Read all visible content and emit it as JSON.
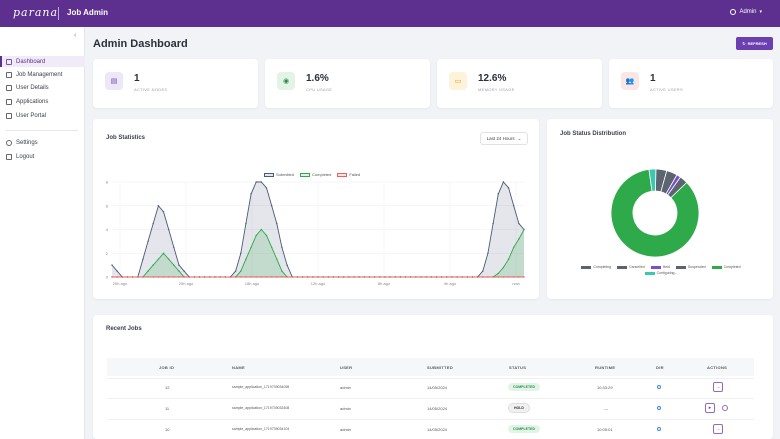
{
  "header": {
    "logo": "parana",
    "app_title": "Job Admin",
    "user_label": "Admin"
  },
  "sidebar": {
    "collapse_icon": "‹",
    "items": [
      {
        "label": "Dashboard",
        "icon": "dashboard-icon",
        "active": true
      },
      {
        "label": "Job Management",
        "icon": "jobs-icon"
      },
      {
        "label": "User Details",
        "icon": "user-details-icon"
      },
      {
        "label": "Applications",
        "icon": "applications-icon"
      },
      {
        "label": "User Portal",
        "icon": "portal-icon"
      }
    ],
    "bottom_items": [
      {
        "label": "Settings",
        "icon": "gear-icon"
      },
      {
        "label": "Logout",
        "icon": "logout-icon"
      }
    ]
  },
  "page": {
    "title": "Admin Dashboard",
    "refresh_label": "REFRESH"
  },
  "stats": [
    {
      "value": "1",
      "label": "ACTIVE NODES",
      "icon": "server-icon",
      "bg": "#ece8f7",
      "fg": "#6b3fb0"
    },
    {
      "value": "1.6%",
      "label": "CPU USAGE",
      "icon": "cpu-icon",
      "bg": "#e3f4e7",
      "fg": "#2d8a48"
    },
    {
      "value": "12.6%",
      "label": "MEMORY USAGE",
      "icon": "memory-icon",
      "bg": "#fdf3da",
      "fg": "#d89a1b"
    },
    {
      "value": "1",
      "label": "ACTIVE USERS",
      "icon": "users-icon",
      "bg": "#fbe6e6",
      "fg": "#d14040"
    }
  ],
  "job_stats": {
    "title": "Job Statistics",
    "range": "Last 24 Hours"
  },
  "chart_data": [
    {
      "type": "area",
      "title": "Job Statistics",
      "x": [
        "20h ago",
        "",
        "",
        "",
        "",
        "",
        "",
        "",
        "",
        "",
        "",
        "",
        "",
        "",
        "",
        "",
        "",
        "",
        "",
        "",
        "",
        "",
        "",
        "",
        "",
        "",
        "",
        "",
        "",
        "",
        "",
        "",
        "",
        "",
        "",
        "",
        "",
        "",
        "",
        "",
        "",
        "",
        "",
        "",
        "",
        "",
        "",
        "",
        "",
        "",
        "",
        "",
        "",
        "",
        "",
        "",
        "",
        "",
        "",
        "",
        "",
        "",
        "",
        "",
        "",
        "",
        "",
        "",
        "",
        "",
        "",
        "",
        "",
        "",
        "",
        "",
        "",
        "",
        "",
        "",
        "now"
      ],
      "xticks": [
        "20h ago",
        "20h ago",
        "18h ago",
        "12h ago",
        "8h ago",
        "4h ago",
        "now"
      ],
      "yticks": [
        "0",
        "2",
        "4",
        "6",
        "8"
      ],
      "ylim": [
        0,
        8
      ],
      "series": [
        {
          "name": "Submitted",
          "color": "#4a5a7a",
          "values": [
            1,
            0.5,
            0,
            0,
            0,
            0,
            1.5,
            3,
            4.5,
            6,
            5.5,
            4,
            2.5,
            1,
            0.5,
            0,
            0,
            0,
            0,
            0,
            0,
            0,
            0,
            0,
            0.5,
            2,
            4.5,
            7,
            8,
            8,
            7.5,
            6,
            4.5,
            2.5,
            1,
            0,
            0,
            0,
            0,
            0,
            0,
            0,
            0,
            0,
            0,
            0,
            0,
            0,
            0,
            0,
            0,
            0,
            0,
            0,
            0,
            0,
            0,
            0,
            0,
            0,
            0,
            0,
            0,
            0,
            0,
            0,
            0,
            0,
            0,
            0,
            0,
            0,
            0.5,
            2,
            4.5,
            7,
            8,
            7.5,
            6,
            4.5,
            4
          ]
        },
        {
          "name": "Completed",
          "color": "#2faa4a",
          "values": [
            0,
            0,
            0,
            0,
            0,
            0,
            0,
            0.5,
            1,
            1.5,
            2,
            1.5,
            1,
            0.5,
            0,
            0,
            0,
            0,
            0,
            0,
            0,
            0,
            0,
            0,
            0,
            0.5,
            1.5,
            2.5,
            3.5,
            4,
            3.5,
            2.5,
            1.5,
            0.5,
            0,
            0,
            0,
            0,
            0,
            0,
            0,
            0,
            0,
            0,
            0,
            0,
            0,
            0,
            0,
            0,
            0,
            0,
            0,
            0,
            0,
            0,
            0,
            0,
            0,
            0,
            0,
            0,
            0,
            0,
            0,
            0,
            0,
            0,
            0,
            0,
            0,
            0,
            0,
            0,
            0,
            0.3,
            0.8,
            1.5,
            2.5,
            3.2,
            4
          ]
        },
        {
          "name": "Failed",
          "color": "#e06262",
          "values": [
            0,
            0,
            0,
            0,
            0,
            0,
            0,
            0,
            0,
            0,
            0,
            0,
            0,
            0,
            0,
            0,
            0,
            0,
            0,
            0,
            0,
            0,
            0,
            0,
            0,
            0,
            0,
            0,
            0,
            0,
            0,
            0,
            0,
            0,
            0,
            0,
            0,
            0,
            0,
            0,
            0,
            0,
            0,
            0,
            0,
            0,
            0,
            0,
            0,
            0,
            0,
            0,
            0,
            0,
            0,
            0,
            0,
            0,
            0,
            0,
            0,
            0,
            0,
            0,
            0,
            0,
            0,
            0,
            0,
            0,
            0,
            0,
            0,
            0,
            0,
            0,
            0,
            0,
            0,
            0,
            0
          ]
        }
      ]
    },
    {
      "type": "pie",
      "title": "Job Status Distribution",
      "categories": [
        "Completing",
        "Cancelled",
        "Held",
        "Suspended",
        "Completed",
        "Configuring"
      ],
      "colors": [
        "#5c6470",
        "#5c6470",
        "#7a4fc7",
        "#5c6470",
        "#2faa4a",
        "#3cc8b0"
      ],
      "values": [
        4,
        4,
        1.5,
        3,
        85,
        2.5
      ]
    }
  ],
  "distribution": {
    "title": "Job Status Distribution",
    "legend": [
      {
        "label": "Completing",
        "color": "#5c6470"
      },
      {
        "label": "Cancelled",
        "color": "#5c6470"
      },
      {
        "label": "Held",
        "color": "#7a4fc7"
      },
      {
        "label": "Suspended",
        "color": "#5c6470"
      },
      {
        "label": "Completed",
        "color": "#2faa4a"
      },
      {
        "label": "Configuring...",
        "color": "#3cc8b0"
      }
    ]
  },
  "recent_jobs": {
    "title": "Recent Jobs",
    "columns": [
      "JOB ID",
      "NAME",
      "USER",
      "SUBMITTED",
      "STATUS",
      "RUNTIME",
      "DIR",
      "ACTIONS"
    ],
    "rows": [
      {
        "id": "12",
        "name": "sample_application_1719739034098",
        "user": "admin",
        "submitted": "14/05/2024",
        "status": "COMPLETED",
        "status_type": "completed",
        "runtime": "10:33:29"
      },
      {
        "id": "11",
        "name": "sample_application_1719739032408",
        "user": "admin",
        "submitted": "14/05/2024",
        "status": "HOLD",
        "status_type": "hold",
        "runtime": "—"
      },
      {
        "id": "10",
        "name": "sample_application_1719739034104",
        "user": "admin",
        "submitted": "14/05/2024",
        "status": "COMPLETED",
        "status_type": "completed",
        "runtime": "10:05:01"
      }
    ]
  }
}
